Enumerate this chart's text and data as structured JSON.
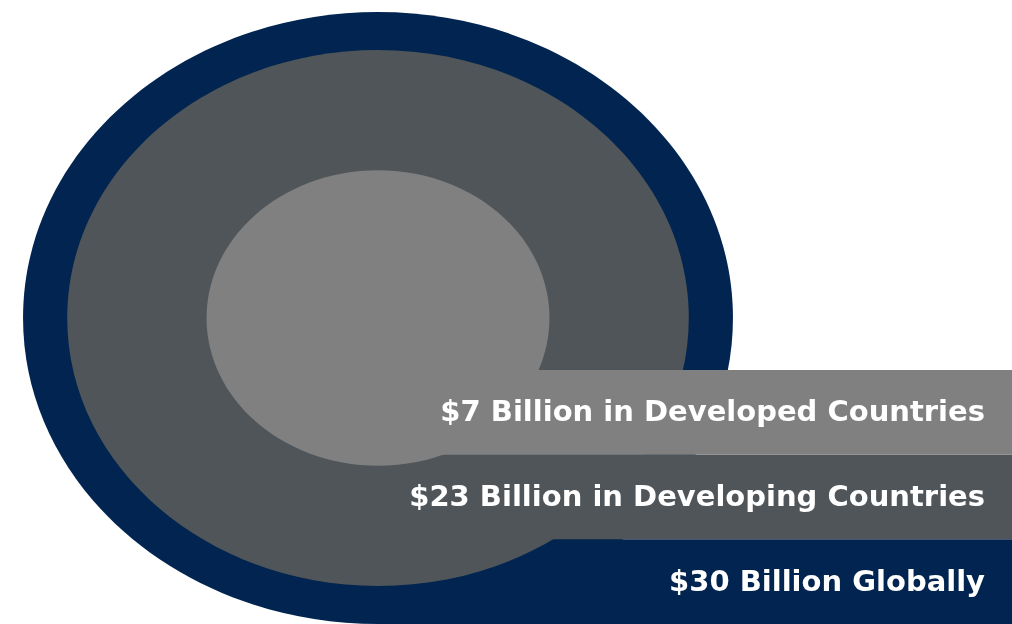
{
  "chart_data": {
    "type": "other",
    "categories": [
      "in Developed Countries",
      "in Developing Countries",
      "Globally"
    ],
    "values": [
      7,
      23,
      30
    ],
    "value_labels": [
      "$7 Billion",
      "$23 Billion",
      "$30 Billion"
    ],
    "colors": [
      "#808080",
      "#4f5558",
      "#012550"
    ]
  }
}
